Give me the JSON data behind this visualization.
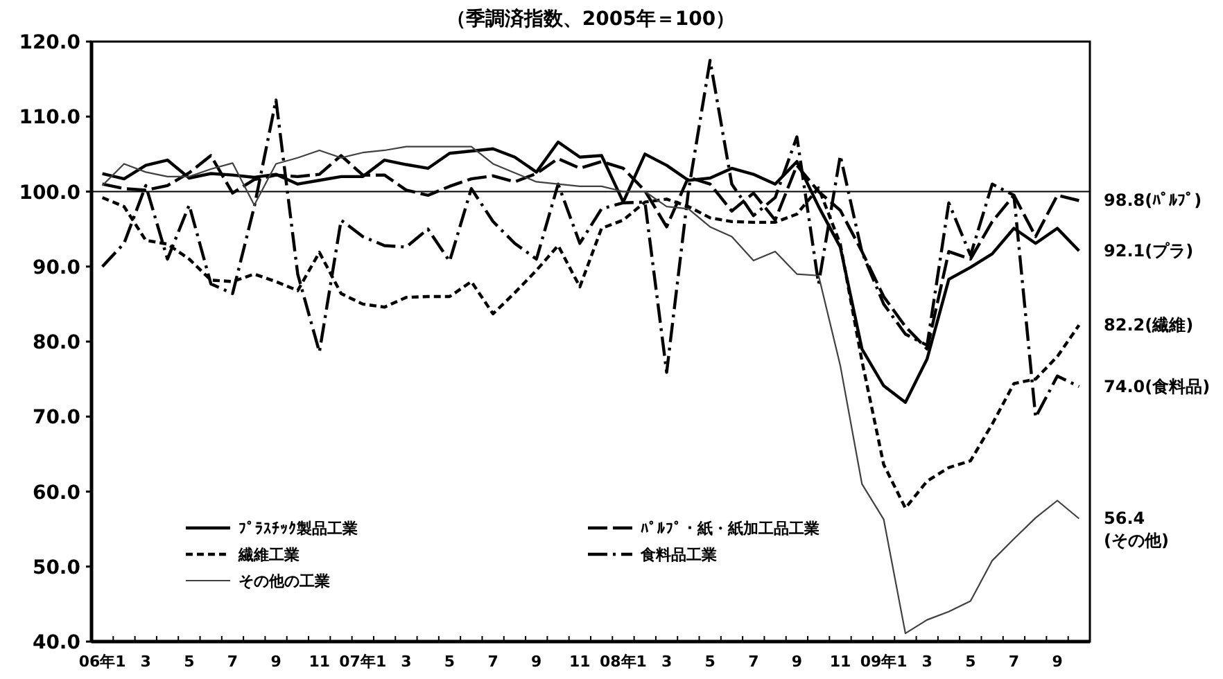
{
  "chart_data": {
    "type": "line",
    "title": "（季調済指数、2005年＝100）",
    "categories": [
      "06年1",
      null,
      "3",
      null,
      "5",
      null,
      "7",
      null,
      "9",
      null,
      "11",
      null,
      "07年1",
      null,
      "3",
      null,
      "5",
      null,
      "7",
      null,
      "9",
      null,
      "11",
      null,
      "08年1",
      null,
      "3",
      null,
      "5",
      null,
      "7",
      null,
      "9",
      null,
      "11",
      null,
      "09年1",
      null,
      "3",
      null,
      "5",
      null,
      "7",
      null,
      "9",
      null
    ],
    "ylim": [
      40,
      120
    ],
    "yticks": [
      {
        "value": 40,
        "label": "40.0"
      },
      {
        "value": 50,
        "label": "50.0"
      },
      {
        "value": 60,
        "label": "60.0"
      },
      {
        "value": 70,
        "label": "70.0"
      },
      {
        "value": 80,
        "label": "80.0"
      },
      {
        "value": 90,
        "label": "90.0"
      },
      {
        "value": 100,
        "label": "100.0"
      },
      {
        "value": 110,
        "label": "110.0"
      },
      {
        "value": 120,
        "label": "120.0"
      }
    ],
    "grid": false,
    "legend": "bottom left",
    "marker": "none",
    "ref_lines": [
      {
        "axis": "y",
        "value": 100,
        "color": "#000000"
      }
    ],
    "series": [
      {
        "name": "ﾌﾟﾗｽﾁｯｸ製品工業",
        "color": "#000000",
        "line_style": "solid",
        "values": [
          102.4,
          101.7,
          103.5,
          104.2,
          101.8,
          102.4,
          102.2,
          101.9,
          102.3,
          101.0,
          101.5,
          102.0,
          102.0,
          104.2,
          103.6,
          103.1,
          105.1,
          105.4,
          105.7,
          104.6,
          102.6,
          106.6,
          104.6,
          104.8,
          98.6,
          105.0,
          103.5,
          101.5,
          101.8,
          103.1,
          102.3,
          101.0,
          104.0,
          98.0,
          92.6,
          79.0,
          74.1,
          71.9,
          77.7,
          88.3,
          89.9,
          91.7,
          95.1,
          93.1,
          95.1,
          92.1
        ]
      },
      {
        "name": "ﾊﾟﾙﾌﾟ・紙・紙加工品工業",
        "color": "#000000",
        "line_style": "longdash",
        "values": [
          101.0,
          100.4,
          100.2,
          100.8,
          102.5,
          104.8,
          99.8,
          101.6,
          102.2,
          102.0,
          102.3,
          104.8,
          102.2,
          102.2,
          100.2,
          99.5,
          100.7,
          101.7,
          102.1,
          101.3,
          102.4,
          104.4,
          103.1,
          104.0,
          103.1,
          100.1,
          95.3,
          101.9,
          101.0,
          97.4,
          99.8,
          96.2,
          103.5,
          100.0,
          97.5,
          92.0,
          86.0,
          82.0,
          79.0,
          92.0,
          91.0,
          96.0,
          99.5,
          94.0,
          99.5,
          98.8
        ]
      },
      {
        "name": "繊維工業",
        "color": "#000000",
        "line_style": "dashed",
        "values": [
          99.2,
          98.0,
          93.5,
          93.0,
          91.0,
          88.2,
          88.0,
          89.0,
          88.0,
          86.8,
          91.9,
          86.4,
          85.0,
          84.6,
          85.9,
          86.0,
          86.0,
          88.0,
          83.7,
          86.5,
          89.5,
          92.8,
          87.3,
          95.1,
          96.2,
          98.6,
          99.0,
          98.0,
          96.5,
          96.0,
          95.9,
          95.9,
          97.0,
          100.5,
          93.0,
          77.4,
          63.6,
          57.8,
          61.4,
          63.2,
          64.1,
          69.0,
          74.4,
          75.0,
          78.0,
          82.2
        ]
      },
      {
        "name": "食料品工業",
        "color": "#000000",
        "line_style": "dashdot",
        "values": [
          90.0,
          93.1,
          100.8,
          91.0,
          98.2,
          87.7,
          86.4,
          98.0,
          112.2,
          89.0,
          78.6,
          96.2,
          94.0,
          92.8,
          92.6,
          95.0,
          90.7,
          100.4,
          96.0,
          93.1,
          91.0,
          101.0,
          93.1,
          97.7,
          98.5,
          98.6,
          75.9,
          100.0,
          117.5,
          101.0,
          96.8,
          99.2,
          107.3,
          87.7,
          104.8,
          91.9,
          85.0,
          81.0,
          79.5,
          98.5,
          91.5,
          101.0,
          99.5,
          69.9,
          75.4,
          74.0
        ]
      },
      {
        "name": "その他の工業",
        "color": "#404040",
        "line_style": "solid",
        "values": [
          100.8,
          103.7,
          102.6,
          102.0,
          102.0,
          103.0,
          103.8,
          98.2,
          103.7,
          104.5,
          105.5,
          104.5,
          105.2,
          105.5,
          106.0,
          106.0,
          106.0,
          106.0,
          103.7,
          102.5,
          101.3,
          101.0,
          100.7,
          100.7,
          100.0,
          100.0,
          98.0,
          97.7,
          95.3,
          94.0,
          90.8,
          92.0,
          89.0,
          88.8,
          76.8,
          61.0,
          56.3,
          41.1,
          42.9,
          44.0,
          45.4,
          50.8,
          53.7,
          56.5,
          58.8,
          56.4
        ]
      }
    ],
    "annotations": [
      "98.8(ﾊﾟﾙﾌﾟ)",
      "92.1(プラ)",
      "82.2(繊維)",
      "74.0(食料品)",
      "56.4\n(その他)"
    ]
  }
}
